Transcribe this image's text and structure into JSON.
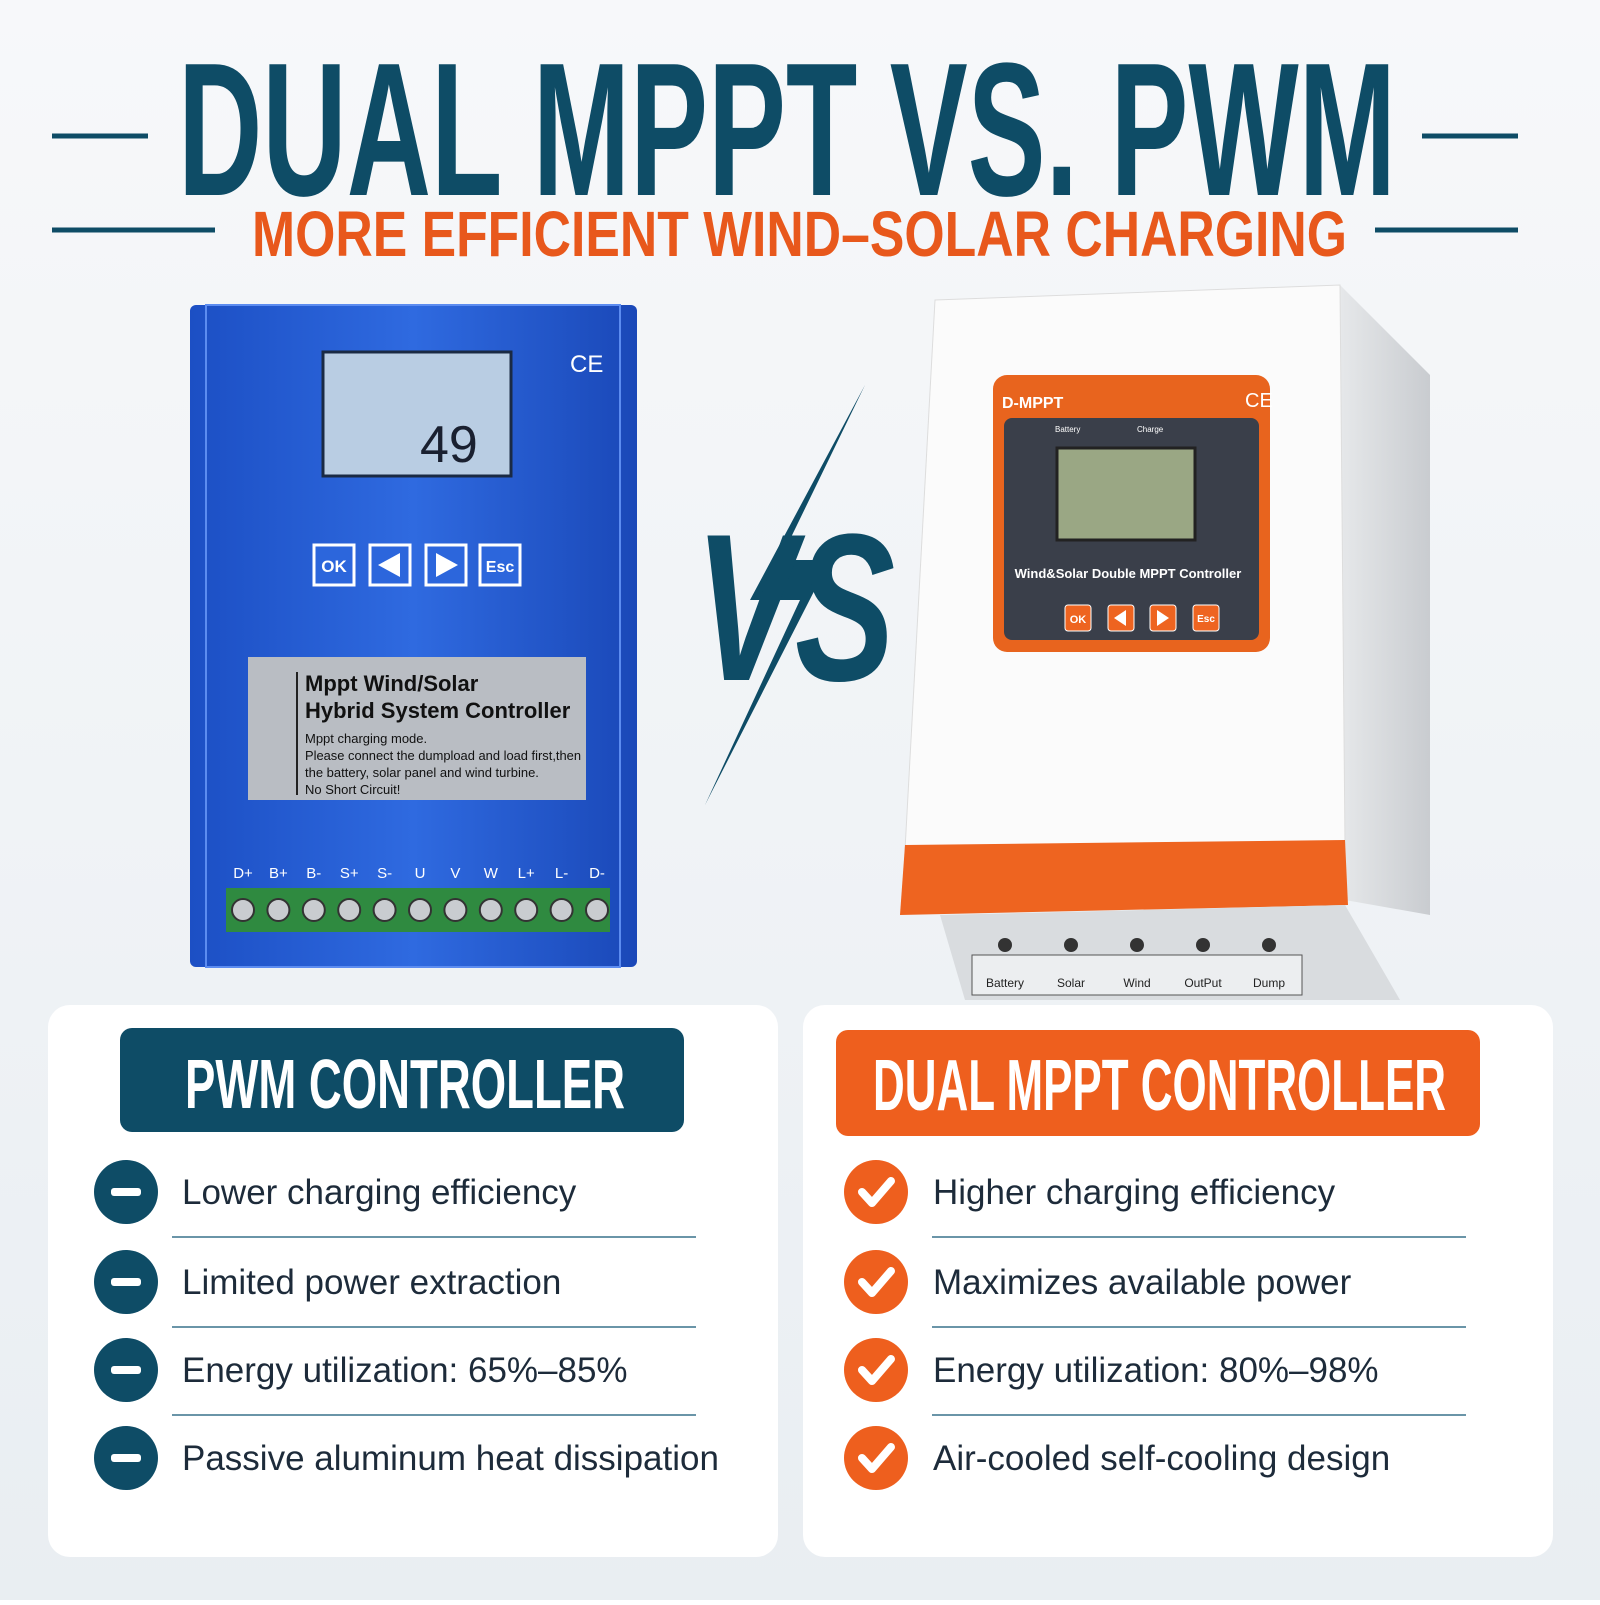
{
  "header": {
    "title": "DUAL MPPT VS. PWM",
    "subtitle": "MORE EFFICIENT WIND–SOLAR CHARGING"
  },
  "vs": "VS",
  "left_device": {
    "ce": "CE",
    "display_value": "49",
    "buttons": [
      "OK",
      "Esc"
    ],
    "label_title": [
      "Mppt Wind/Solar",
      "Hybrid System Controller"
    ],
    "label_notes": [
      "Mppt charging mode.",
      "Please connect the dumpload and load first,then",
      "the battery, solar panel and wind turbine.",
      "No Short Circuit!"
    ],
    "terminals": [
      "D+",
      "B+",
      "B-",
      "S+",
      "S-",
      "U",
      "V",
      "W",
      "L+",
      "L-",
      "D-"
    ]
  },
  "right_device": {
    "brand": "D-MPPT",
    "ce": "CE",
    "indicators": [
      "Battery",
      "Charge"
    ],
    "model": "Wind&Solar Double MPPT Controller",
    "buttons": [
      "OK",
      "Esc"
    ],
    "terminals": [
      "Battery",
      "Solar",
      "Wind",
      "OutPut",
      "Dump"
    ]
  },
  "cards": [
    {
      "title": "PWM CONTROLLER",
      "items": [
        "Lower charging efficiency",
        "Limited power extraction",
        "Energy utilization:  65%–85%",
        "Passive aluminum heat dissipation"
      ]
    },
    {
      "title": "DUAL MPPT CONTROLLER",
      "items": [
        "Higher charging efficiency",
        "Maximizes available power",
        "Energy utilization: 80%–98%",
        "Air-cooled self-cooling design"
      ]
    }
  ]
}
